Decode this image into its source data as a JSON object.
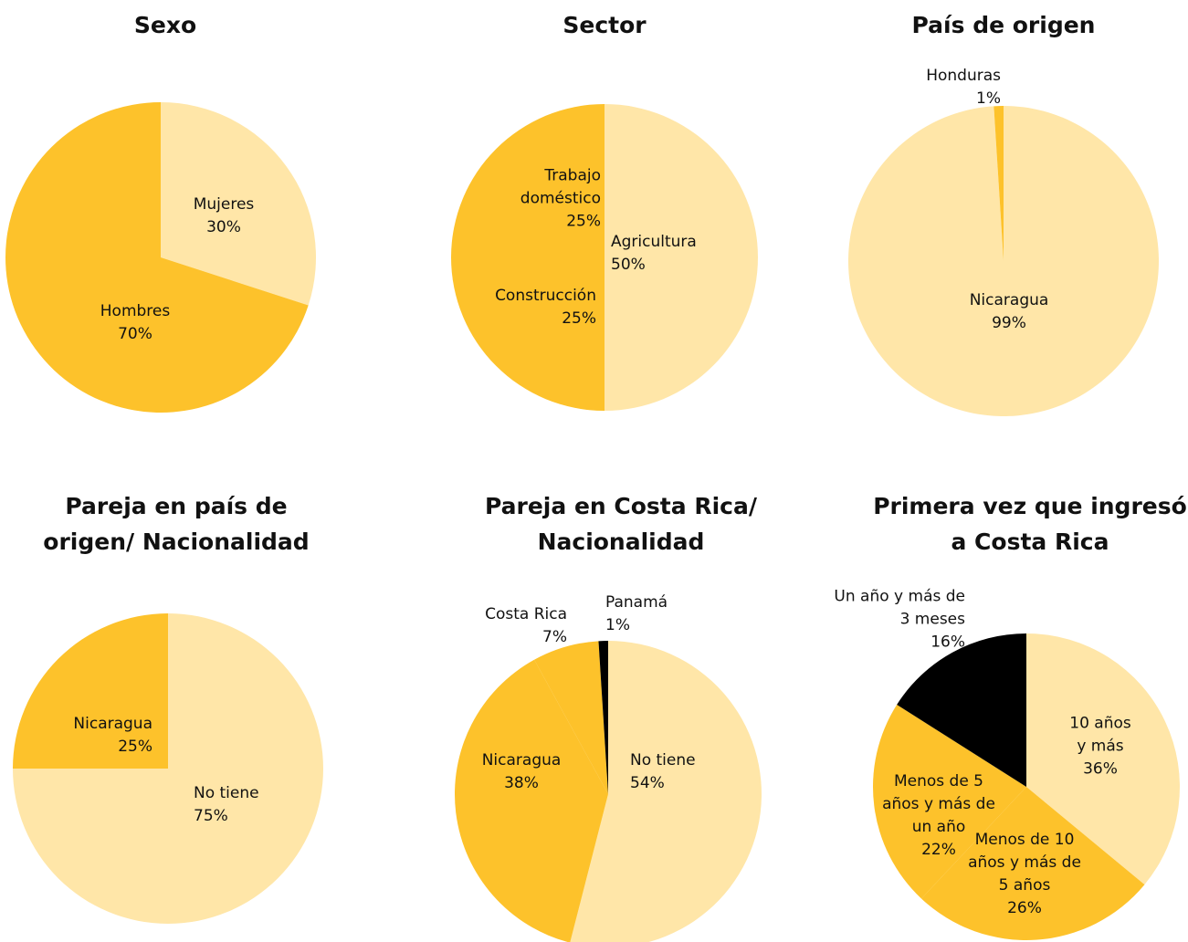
{
  "chart_data": [
    {
      "type": "pie",
      "title": "Sexo",
      "categories": [
        "Mujeres",
        "Hombres"
      ],
      "values": [
        30,
        70
      ],
      "value_labels": [
        "30%",
        "70%"
      ],
      "colors": [
        "#FFE6A8",
        "#FDC22B"
      ]
    },
    {
      "type": "pie",
      "title": "Sector",
      "categories": [
        "Agricultura",
        "Construcción",
        "Trabajo doméstico"
      ],
      "values": [
        50,
        25,
        25
      ],
      "value_labels": [
        "50%",
        "25%",
        "25%"
      ],
      "colors": [
        "#FFE6A8",
        "#FDC22B",
        "#FDC22B"
      ]
    },
    {
      "type": "pie",
      "title": "País de origen",
      "categories": [
        "Nicaragua",
        "Honduras"
      ],
      "values": [
        99,
        1
      ],
      "value_labels": [
        "99%",
        "1%"
      ],
      "colors": [
        "#FFE6A8",
        "#FDC22B"
      ]
    },
    {
      "type": "pie",
      "title": "Pareja en país de origen/ Nacionalidad",
      "categories": [
        "No tiene",
        "Nicaragua"
      ],
      "values": [
        75,
        25
      ],
      "value_labels": [
        "75%",
        "25%"
      ],
      "colors": [
        "#FFE6A8",
        "#FDC22B"
      ]
    },
    {
      "type": "pie",
      "title": "Pareja en Costa Rica/ Nacionalidad",
      "categories": [
        "No tiene",
        "Nicaragua",
        "Costa Rica",
        "Panamá"
      ],
      "values": [
        54,
        38,
        7,
        1
      ],
      "value_labels": [
        "54%",
        "38%",
        "7%",
        "1%"
      ],
      "colors": [
        "#FFE6A8",
        "#FDC22B",
        "#FDC22B",
        "#000000"
      ]
    },
    {
      "type": "pie",
      "title": "Primera vez que ingresó a Costa Rica",
      "categories": [
        "10 años y más",
        "Menos de 10 años y más de 5 años",
        "Menos de 5 años y más de un año",
        "Un año y más de 3 meses"
      ],
      "values": [
        36,
        26,
        22,
        16
      ],
      "value_labels": [
        "36%",
        "26%",
        "22%",
        "16%"
      ],
      "colors": [
        "#FFE6A8",
        "#FDC22B",
        "#FDC22B",
        "#000000"
      ]
    }
  ]
}
